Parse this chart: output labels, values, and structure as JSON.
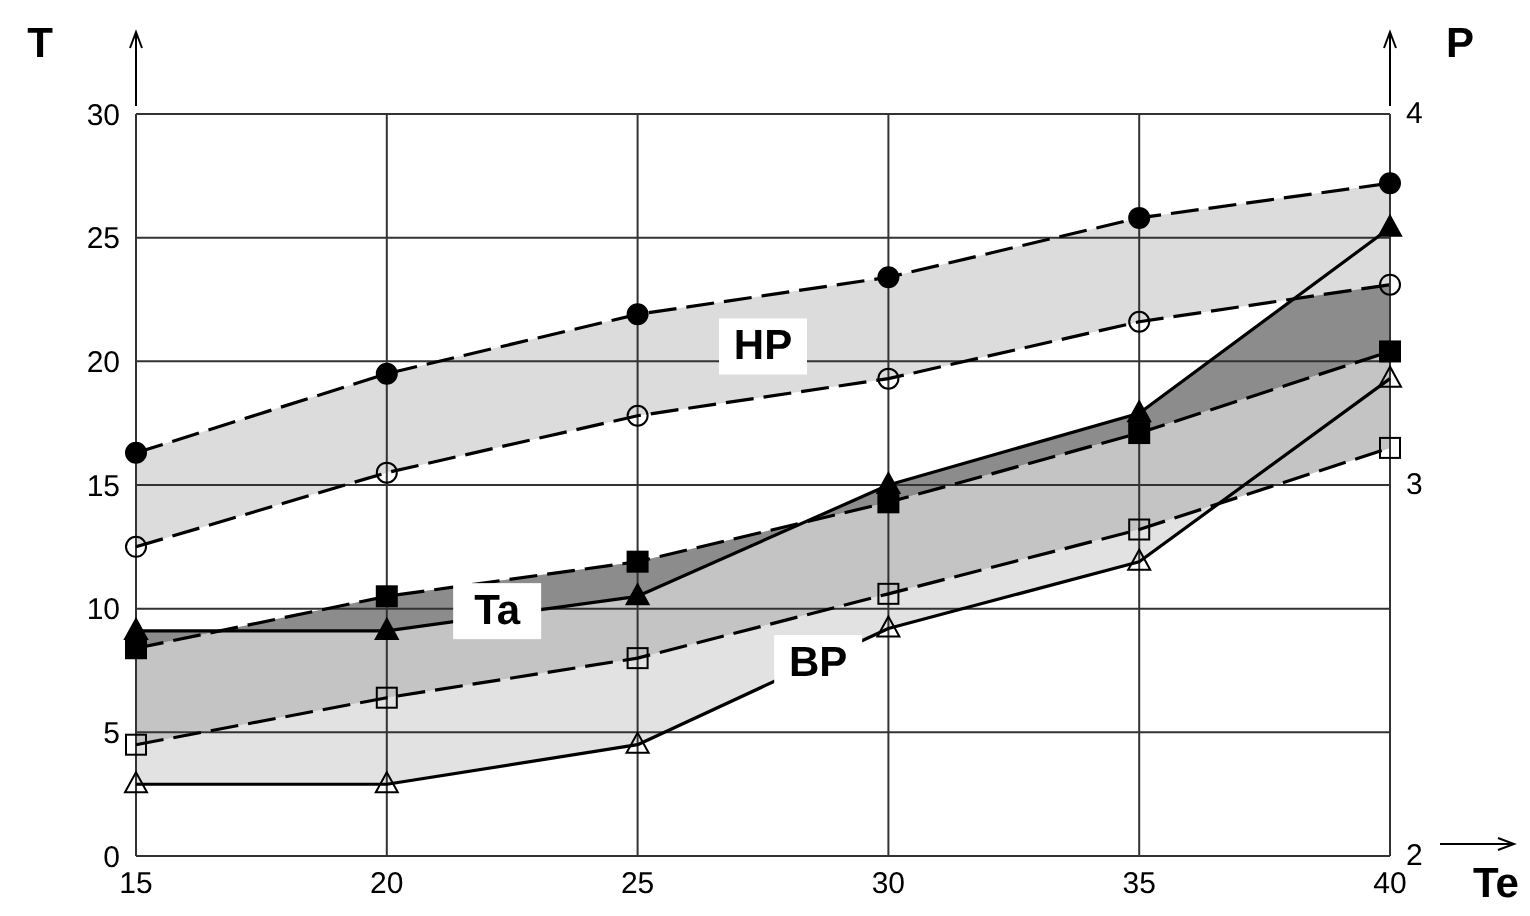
{
  "chart_data": {
    "type": "line",
    "xlabel": "Te",
    "ylabel": "T",
    "y2label": "P",
    "x": [
      15,
      20,
      25,
      30,
      35,
      40
    ],
    "series": [
      {
        "color": "#000000",
        "marker": "circle",
        "line_style": "dashed",
        "values": [
          16.3,
          19.5,
          21.9,
          23.4,
          25.8,
          27.2
        ],
        "lower": [
          12.5,
          15.5,
          17.8,
          19.3,
          21.6,
          23.1
        ],
        "upper": [
          16.3,
          19.5,
          21.9,
          23.4,
          25.8,
          27.2
        ]
      },
      {
        "color": "#000000",
        "marker": "circle-open",
        "line_style": "dashed",
        "values": [
          12.5,
          15.5,
          17.8,
          19.3,
          21.6,
          23.1
        ]
      },
      {
        "color": "#000000",
        "marker": "square",
        "line_style": "dashed",
        "values": [
          8.4,
          10.5,
          11.9,
          14.3,
          17.1,
          20.4
        ],
        "lower": [
          4.5,
          6.4,
          8.0,
          10.6,
          13.2,
          16.5
        ],
        "upper": [
          8.4,
          10.5,
          11.9,
          14.3,
          17.1,
          20.4
        ]
      },
      {
        "color": "#000000",
        "marker": "square-open",
        "line_style": "dashed",
        "values": [
          4.5,
          6.4,
          8.0,
          10.6,
          13.2,
          16.5
        ]
      },
      {
        "color": "#000000",
        "marker": "triangle",
        "line_style": "solid",
        "values": [
          9.1,
          9.1,
          10.5,
          15.0,
          17.9,
          25.4
        ],
        "lower": [
          8.4,
          10.5,
          11.9,
          14.3,
          17.1,
          20.4
        ],
        "upper": [
          9.1,
          9.1,
          10.5,
          15.0,
          17.9,
          25.4
        ]
      },
      {
        "color": "#000000",
        "marker": "triangle-open",
        "line_style": "solid",
        "values": [
          2.9,
          2.9,
          4.5,
          9.2,
          11.9,
          19.3
        ],
        "lower": [
          2.9,
          2.9,
          4.5,
          9.2,
          11.9,
          19.3
        ],
        "upper": [
          4.5,
          6.4,
          8.0,
          10.6,
          13.2,
          16.5
        ]
      }
    ],
    "annotations": [
      {
        "text": "HP",
        "x": 27.5,
        "y": 20.6
      },
      {
        "text": "Ta",
        "x": 22.2,
        "y": 9.9
      },
      {
        "text": "BP",
        "x": 28.6,
        "y": 7.8
      }
    ],
    "xlim": [
      15,
      40
    ],
    "xticks": [
      15,
      20,
      25,
      30,
      35,
      40
    ],
    "ylim": [
      0,
      30
    ],
    "yticks": [
      0,
      5,
      10,
      15,
      20,
      25,
      30
    ],
    "y2lim": [
      2,
      4
    ],
    "y2ticks": [
      2,
      3,
      4
    ],
    "grid": true,
    "legend": false
  }
}
